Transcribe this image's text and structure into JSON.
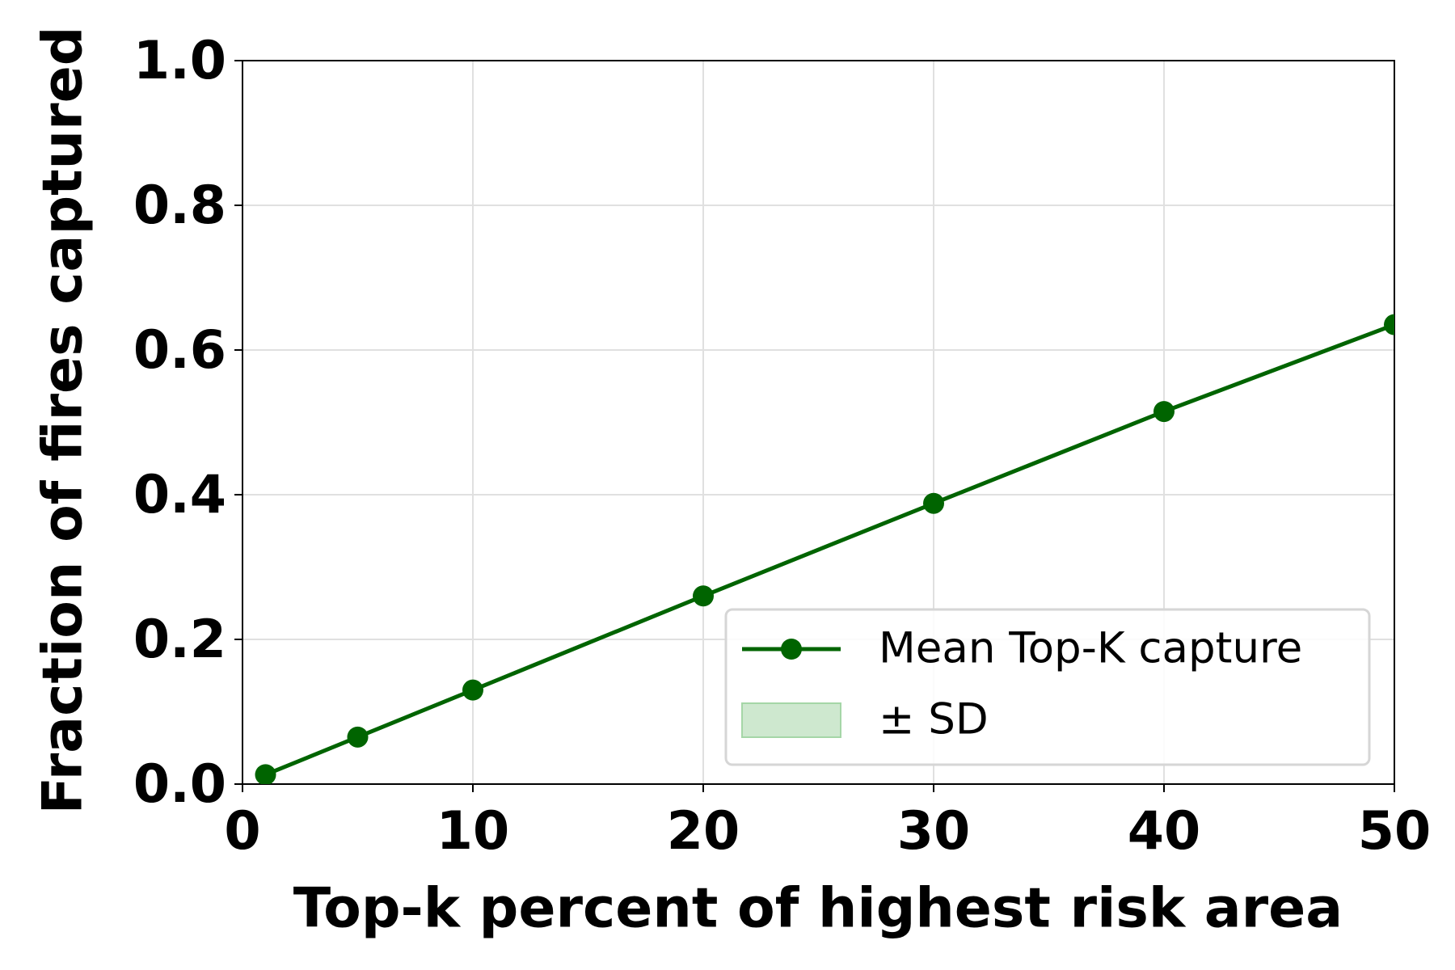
{
  "chart_data": {
    "type": "line",
    "xlabel": "Top-k percent of highest risk area",
    "ylabel": "Fraction of fires captured",
    "x": [
      1,
      5,
      10,
      20,
      30,
      40,
      50
    ],
    "series": [
      {
        "name": "Mean Top-K capture",
        "color": "#006400",
        "values": [
          0.013,
          0.065,
          0.13,
          0.26,
          0.388,
          0.515,
          0.635
        ]
      }
    ],
    "band": {
      "name": "± SD",
      "color": "#a5d6a7"
    },
    "xlim": [
      0,
      50
    ],
    "xticks": [
      0,
      10,
      20,
      30,
      40,
      50
    ],
    "ylim": [
      0,
      1
    ],
    "yticks": [
      {
        "value": 0,
        "label": "0.0"
      },
      {
        "value": 0.2,
        "label": "0.2"
      },
      {
        "value": 0.4,
        "label": "0.4"
      },
      {
        "value": 0.6,
        "label": "0.6"
      },
      {
        "value": 0.8,
        "label": "0.8"
      },
      {
        "value": 1,
        "label": "1.0"
      }
    ],
    "grid": true,
    "legend": "lower right"
  }
}
